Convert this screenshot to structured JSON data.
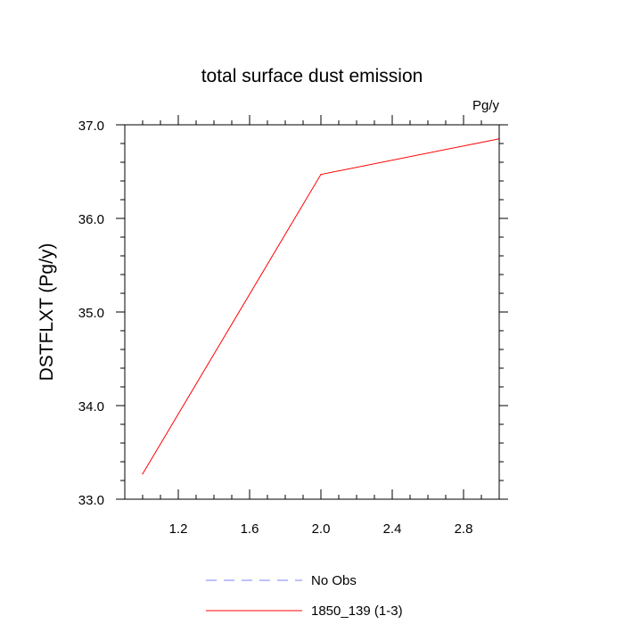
{
  "chart_data": {
    "type": "line",
    "title": "total surface dust emission",
    "units_label": "Pg/y",
    "ylabel": "DSTFLXT  (Pg/y)",
    "xlabel": "",
    "xlim": [
      0.9,
      3.0
    ],
    "ylim": [
      33.0,
      37.0
    ],
    "x_ticks": [
      1.2,
      1.6,
      2.0,
      2.4,
      2.8
    ],
    "x_tick_labels": [
      "1.2",
      "1.6",
      "2.0",
      "2.4",
      "2.8"
    ],
    "y_ticks": [
      33.0,
      34.0,
      35.0,
      36.0,
      37.0
    ],
    "y_tick_labels": [
      "33.0",
      "34.0",
      "35.0",
      "36.0",
      "37.0"
    ],
    "grid": false,
    "legend_position": "bottom",
    "series": [
      {
        "name": "No Obs",
        "color": "#8080ff",
        "dash": "dashed",
        "x": [],
        "y": []
      },
      {
        "name": "1850_139 (1-3)",
        "color": "#ff0000",
        "dash": "solid",
        "x": [
          1,
          2,
          3
        ],
        "y": [
          33.27,
          36.47,
          36.85
        ]
      }
    ]
  }
}
